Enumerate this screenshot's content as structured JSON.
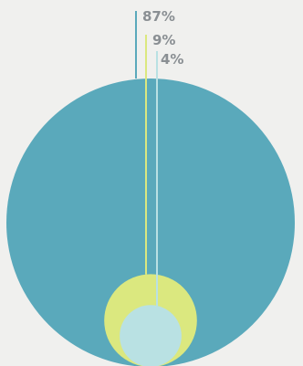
{
  "chart_data": {
    "type": "nested-circles",
    "items": [
      {
        "label": "87%",
        "value": 87,
        "color": "#5aa9bb"
      },
      {
        "label": "9%",
        "value": 9,
        "color": "#dbe87f"
      },
      {
        "label": "4%",
        "value": 4,
        "color": "#b9e1e3"
      }
    ],
    "label_color": "#8a8f93"
  }
}
